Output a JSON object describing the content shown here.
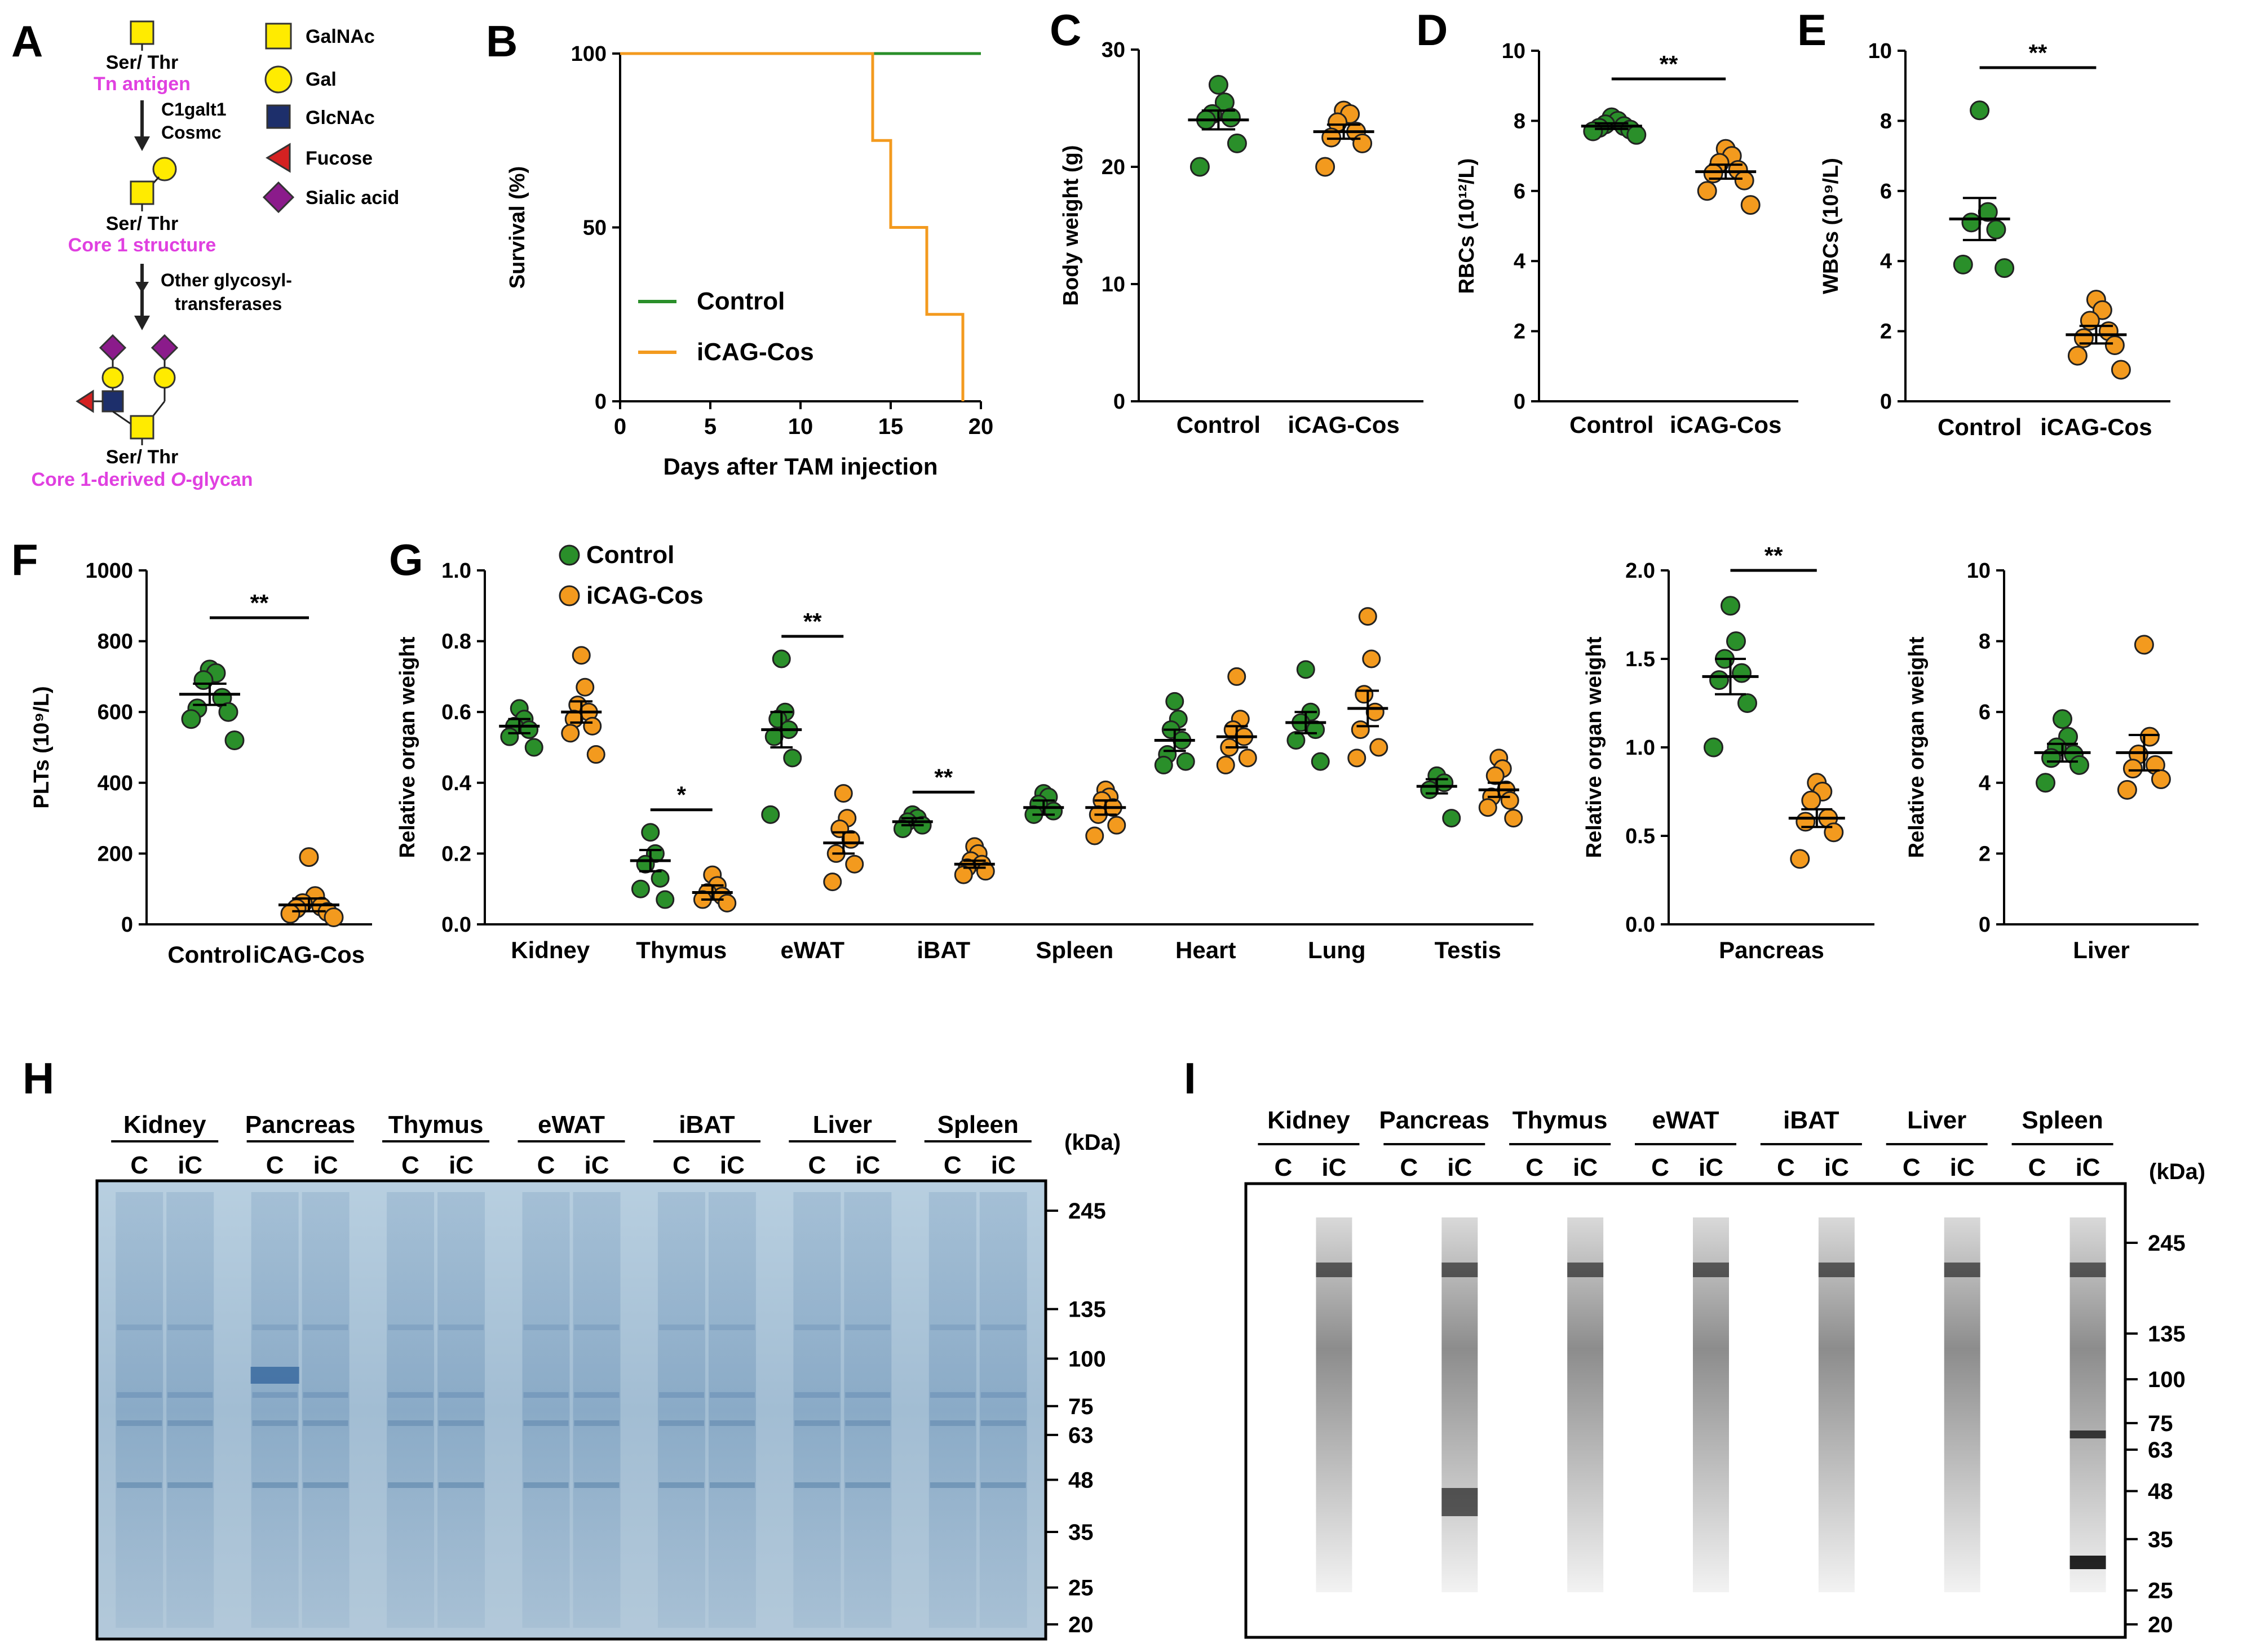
{
  "colors": {
    "control": "#2a8f2a",
    "icag": "#f39a1e",
    "magenta": "#e040e0",
    "galnac": "#ffeb00",
    "glcnac": "#1d2f6b",
    "fucose": "#d42121",
    "sialic": "#8b1b8b",
    "gel_bg": "#a6bfd4",
    "blot_bg": "#ffffff"
  },
  "panel_letters": {
    "A": "A",
    "B": "B",
    "C": "C",
    "D": "D",
    "E": "E",
    "F": "F",
    "G": "G",
    "H": "H",
    "I": "I"
  },
  "panelA": {
    "legend": [
      {
        "icon": "yellow-square",
        "label": "GalNAc"
      },
      {
        "icon": "yellow-circle",
        "label": "Gal"
      },
      {
        "icon": "navy-square",
        "label": "GlcNAc"
      },
      {
        "icon": "red-triangle",
        "label": "Fucose"
      },
      {
        "icon": "purple-diamond",
        "label": "Sialic acid"
      }
    ],
    "ser_thr": "Ser/ Thr",
    "tn_antigen": "Tn antigen",
    "enzyme1": "C1galt1",
    "enzyme2": "Cosmc",
    "core1": "Core 1 structure",
    "other1": "Other glycosyl-",
    "other2": "transferases",
    "derived_a": "Core 1-derived ",
    "derived_b": "O",
    "derived_c": "-glycan"
  },
  "chart_data": [
    {
      "panel": "B",
      "type": "line",
      "xlabel": "Days after TAM injection",
      "ylabel": "Survival (%)",
      "xlim": [
        0,
        20
      ],
      "ylim": [
        0,
        100
      ],
      "xticks": [
        0,
        5,
        10,
        15,
        20
      ],
      "yticks": [
        0,
        50,
        100
      ],
      "series": [
        {
          "name": "Control",
          "points": [
            [
              0,
              100
            ],
            [
              20,
              100
            ]
          ]
        },
        {
          "name": "iCAG-Cos",
          "points": [
            [
              0,
              100
            ],
            [
              14,
              100
            ],
            [
              14,
              75
            ],
            [
              15,
              75
            ],
            [
              15,
              50
            ],
            [
              17,
              50
            ],
            [
              17,
              25
            ],
            [
              19,
              25
            ],
            [
              19,
              0
            ]
          ]
        }
      ]
    },
    {
      "panel": "C",
      "type": "scatter",
      "categories": [
        "Control",
        "iCAG-Cos"
      ],
      "ylabel": "Body weight (g)",
      "ylim": [
        0,
        30
      ],
      "yticks": [
        0,
        10,
        20,
        30
      ],
      "series": [
        {
          "name": "Control",
          "values": [
            27.0,
            25.5,
            24.5,
            24.2,
            24.0,
            22.0,
            20.0
          ],
          "mean": 24.0,
          "sem": 0.8
        },
        {
          "name": "iCAG-Cos",
          "values": [
            24.8,
            24.5,
            23.8,
            23.0,
            22.5,
            22.0,
            20.0
          ],
          "mean": 23.0,
          "sem": 0.6
        }
      ],
      "significance": ""
    },
    {
      "panel": "D",
      "type": "scatter",
      "categories": [
        "Control",
        "iCAG-Cos"
      ],
      "ylabel": "RBCs (10¹²/L)",
      "ylim": [
        0,
        10
      ],
      "yticks": [
        0,
        2,
        4,
        6,
        8,
        10
      ],
      "series": [
        {
          "name": "Control",
          "values": [
            8.1,
            8.0,
            7.9,
            7.85,
            7.8,
            7.75,
            7.7,
            7.6
          ],
          "mean": 7.85,
          "sem": 0.08
        },
        {
          "name": "iCAG-Cos",
          "values": [
            7.2,
            7.0,
            6.8,
            6.6,
            6.5,
            6.3,
            6.0,
            5.6
          ],
          "mean": 6.55,
          "sem": 0.2
        }
      ],
      "significance": "**"
    },
    {
      "panel": "E",
      "type": "scatter",
      "categories": [
        "Control",
        "iCAG-Cos"
      ],
      "ylabel": "WBCs (10⁹/L)",
      "ylim": [
        0,
        10
      ],
      "yticks": [
        0,
        2,
        4,
        6,
        8,
        10
      ],
      "series": [
        {
          "name": "Control",
          "values": [
            8.3,
            5.4,
            5.1,
            4.9,
            3.9,
            3.8
          ],
          "mean": 5.2,
          "sem": 0.6
        },
        {
          "name": "iCAG-Cos",
          "values": [
            2.9,
            2.6,
            2.3,
            2.0,
            1.8,
            1.6,
            1.3,
            0.9
          ],
          "mean": 1.9,
          "sem": 0.25
        }
      ],
      "significance": "**"
    },
    {
      "panel": "F",
      "type": "scatter",
      "categories": [
        "Control",
        "iCAG-Cos"
      ],
      "ylabel": "PLTs (10⁹/L)",
      "ylim": [
        0,
        1000
      ],
      "yticks": [
        0,
        200,
        400,
        600,
        800,
        1000
      ],
      "series": [
        {
          "name": "Control",
          "values": [
            720,
            710,
            690,
            640,
            610,
            600,
            580,
            520
          ],
          "mean": 650,
          "sem": 30
        },
        {
          "name": "iCAG-Cos",
          "values": [
            190,
            80,
            60,
            50,
            45,
            35,
            30,
            20
          ],
          "mean": 55,
          "sem": 18
        }
      ],
      "significance": "**"
    },
    {
      "panel": "G",
      "type": "scatter",
      "legend": [
        "Control",
        "iCAG-Cos"
      ],
      "categories": [
        "Kidney",
        "Thymus",
        "eWAT",
        "iBAT",
        "Spleen",
        "Heart",
        "Lung",
        "Testis"
      ],
      "ylabel": "Relative organ weight",
      "ylim": [
        0,
        1.0
      ],
      "yticks": [
        0,
        0.2,
        0.4,
        0.6,
        0.8,
        1.0
      ],
      "control": [
        {
          "values": [
            0.61,
            0.58,
            0.56,
            0.55,
            0.53,
            0.5
          ],
          "mean": 0.56,
          "sem": 0.02
        },
        {
          "values": [
            0.26,
            0.2,
            0.17,
            0.13,
            0.1,
            0.07
          ],
          "mean": 0.18,
          "sem": 0.03
        },
        {
          "values": [
            0.75,
            0.6,
            0.58,
            0.55,
            0.53,
            0.47,
            0.31
          ],
          "mean": 0.55,
          "sem": 0.05
        },
        {
          "values": [
            0.31,
            0.3,
            0.29,
            0.28,
            0.27
          ],
          "mean": 0.29,
          "sem": 0.01
        },
        {
          "values": [
            0.37,
            0.36,
            0.34,
            0.32,
            0.31
          ],
          "mean": 0.33,
          "sem": 0.02
        },
        {
          "values": [
            0.63,
            0.58,
            0.55,
            0.52,
            0.48,
            0.46,
            0.45
          ],
          "mean": 0.52,
          "sem": 0.03
        },
        {
          "values": [
            0.72,
            0.6,
            0.57,
            0.55,
            0.52,
            0.46
          ],
          "mean": 0.57,
          "sem": 0.03
        },
        {
          "values": [
            0.42,
            0.4,
            0.38,
            0.3
          ],
          "mean": 0.39,
          "sem": 0.02
        }
      ],
      "icag": [
        {
          "values": [
            0.76,
            0.67,
            0.62,
            0.6,
            0.58,
            0.56,
            0.54,
            0.48
          ],
          "mean": 0.6,
          "sem": 0.03
        },
        {
          "values": [
            0.14,
            0.11,
            0.09,
            0.08,
            0.07,
            0.06
          ],
          "mean": 0.09,
          "sem": 0.02
        },
        {
          "values": [
            0.37,
            0.3,
            0.27,
            0.24,
            0.2,
            0.17,
            0.12
          ],
          "mean": 0.23,
          "sem": 0.03
        },
        {
          "values": [
            0.22,
            0.2,
            0.18,
            0.17,
            0.16,
            0.15,
            0.14
          ],
          "mean": 0.17,
          "sem": 0.01
        },
        {
          "values": [
            0.38,
            0.36,
            0.35,
            0.33,
            0.31,
            0.28,
            0.25
          ],
          "mean": 0.33,
          "sem": 0.02
        },
        {
          "values": [
            0.7,
            0.58,
            0.55,
            0.53,
            0.5,
            0.47,
            0.45
          ],
          "mean": 0.53,
          "sem": 0.03
        },
        {
          "values": [
            0.87,
            0.75,
            0.65,
            0.6,
            0.55,
            0.5,
            0.47
          ],
          "mean": 0.61,
          "sem": 0.05
        },
        {
          "values": [
            0.47,
            0.44,
            0.42,
            0.38,
            0.36,
            0.35,
            0.33,
            0.3
          ],
          "mean": 0.38,
          "sem": 0.02
        }
      ],
      "significance": [
        "",
        "*",
        "**",
        "**",
        "",
        "",
        "",
        ""
      ]
    },
    {
      "panel": "G-pancreas",
      "type": "scatter",
      "xlabel": "Pancreas",
      "ylabel": "Relative organ weight",
      "ylim": [
        0,
        2.0
      ],
      "yticks": [
        0,
        0.5,
        1.0,
        1.5,
        2.0
      ],
      "series": [
        {
          "name": "Control",
          "values": [
            1.8,
            1.6,
            1.5,
            1.42,
            1.38,
            1.25,
            1.0
          ],
          "mean": 1.4,
          "sem": 0.1
        },
        {
          "name": "iCAG-Cos",
          "values": [
            0.8,
            0.75,
            0.7,
            0.6,
            0.58,
            0.52,
            0.37
          ],
          "mean": 0.6,
          "sem": 0.05
        }
      ],
      "significance": "**"
    },
    {
      "panel": "G-liver",
      "type": "scatter",
      "xlabel": "Liver",
      "ylabel": "Relative organ weight",
      "ylim": [
        0,
        10
      ],
      "yticks": [
        0,
        2,
        4,
        6,
        8,
        10
      ],
      "series": [
        {
          "name": "Control",
          "values": [
            5.8,
            5.3,
            5.0,
            4.8,
            4.7,
            4.5,
            4.0
          ],
          "mean": 4.85,
          "sem": 0.25
        },
        {
          "name": "iCAG-Cos",
          "values": [
            7.9,
            5.3,
            4.8,
            4.5,
            4.4,
            4.1,
            3.8
          ],
          "mean": 4.85,
          "sem": 0.5
        }
      ],
      "significance": ""
    }
  ],
  "gels": {
    "organs_H": [
      "Kidney",
      "Pancreas",
      "Thymus",
      "eWAT",
      "iBAT",
      "Liver",
      "Spleen"
    ],
    "organs_I": [
      "Kidney",
      "Pancreas",
      "Thymus",
      "eWAT",
      "iBAT",
      "Liver",
      "Spleen"
    ],
    "lane_labels": [
      "C",
      "iC"
    ],
    "kda_label": "(kDa)",
    "markers": [
      "245",
      "135",
      "100",
      "75",
      "63",
      "48",
      "35",
      "25",
      "20"
    ],
    "marker_values": [
      245,
      135,
      100,
      75,
      63,
      48,
      35,
      25,
      20
    ]
  }
}
